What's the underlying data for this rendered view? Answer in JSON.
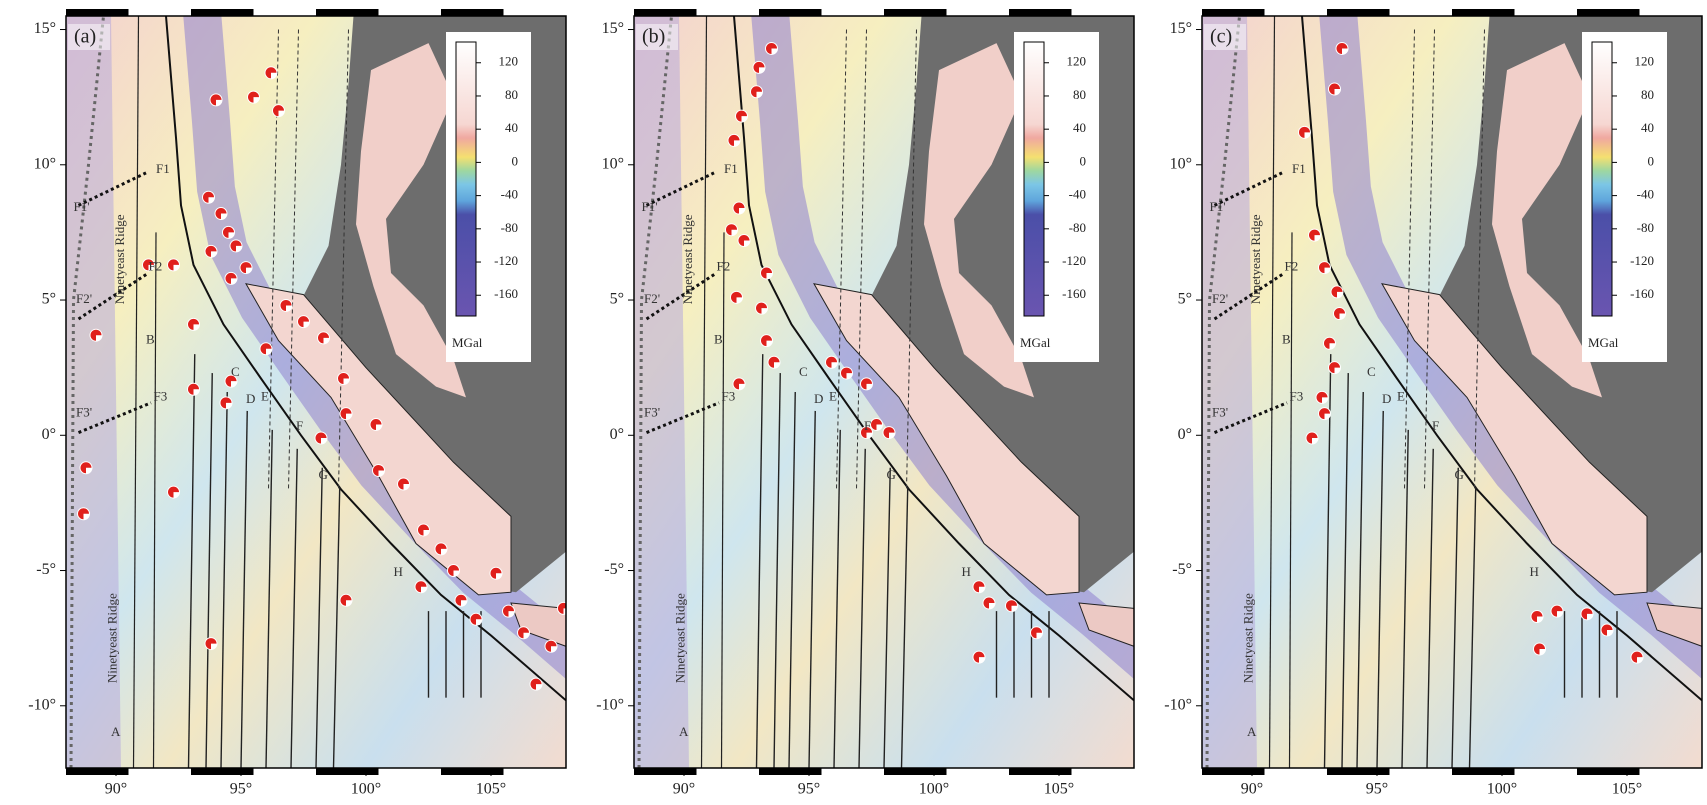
{
  "panels": [
    {
      "label": "(a)",
      "lat_ticks": [
        {
          "value": 15,
          "label": "15°"
        },
        {
          "value": 10,
          "label": "10°"
        },
        {
          "value": 5,
          "label": "5°"
        },
        {
          "value": 0,
          "label": "0°"
        },
        {
          "value": -5,
          "label": "-5°"
        },
        {
          "value": -10,
          "label": "-10°"
        }
      ],
      "lon_ticks": [
        {
          "value": 90,
          "label": "90°"
        },
        {
          "value": 95,
          "label": "95°"
        },
        {
          "value": 100,
          "label": "100°"
        },
        {
          "value": 105,
          "label": "105°"
        }
      ],
      "colorbar": {
        "clim": [
          -185,
          145
        ],
        "ticks": [
          120,
          80,
          40,
          0,
          -40,
          -80,
          -120,
          -160
        ],
        "unit": "MGal"
      },
      "features": [
        "A",
        "B",
        "C",
        "D",
        "E",
        "F",
        "G",
        "H",
        "F1",
        "F1'",
        "F2",
        "F2'",
        "F3",
        "F3'",
        "Ninetyeast Ridge",
        "Ninetyeast Ridge"
      ]
    },
    {
      "label": "(b)",
      "lat_ticks": [
        {
          "value": 15,
          "label": "15°"
        },
        {
          "value": 10,
          "label": "10°"
        },
        {
          "value": 5,
          "label": "5°"
        },
        {
          "value": 0,
          "label": "0°"
        },
        {
          "value": -5,
          "label": "-5°"
        },
        {
          "value": -10,
          "label": "-10°"
        }
      ],
      "lon_ticks": [
        {
          "value": 90,
          "label": "90°"
        },
        {
          "value": 95,
          "label": "95°"
        },
        {
          "value": 100,
          "label": "100°"
        },
        {
          "value": 105,
          "label": "105°"
        }
      ],
      "colorbar": {
        "clim": [
          -185,
          145
        ],
        "ticks": [
          120,
          80,
          40,
          0,
          -40,
          -80,
          -120,
          -160
        ],
        "unit": "MGal"
      },
      "features": [
        "A",
        "B",
        "C",
        "D",
        "E",
        "F",
        "G",
        "H",
        "F1",
        "F1'",
        "F2",
        "F2'",
        "F3",
        "F3'",
        "Ninetyeast Ridge",
        "Ninetyeast Ridge"
      ]
    },
    {
      "label": "(c)",
      "lat_ticks": [
        {
          "value": 15,
          "label": "15°"
        },
        {
          "value": 10,
          "label": "10°"
        },
        {
          "value": 5,
          "label": "5°"
        },
        {
          "value": 0,
          "label": "0°"
        },
        {
          "value": -5,
          "label": "-5°"
        },
        {
          "value": -10,
          "label": "-10°"
        }
      ],
      "lon_ticks": [
        {
          "value": 90,
          "label": "90°"
        },
        {
          "value": 95,
          "label": "95°"
        },
        {
          "value": 100,
          "label": "100°"
        },
        {
          "value": 105,
          "label": "105°"
        }
      ],
      "colorbar": {
        "clim": [
          -185,
          145
        ],
        "ticks": [
          120,
          80,
          40,
          0,
          -40,
          -80,
          -120,
          -160
        ],
        "unit": "MGal"
      },
      "features": [
        "A",
        "B",
        "C",
        "D",
        "E",
        "F",
        "G",
        "H",
        "F1",
        "F1'",
        "F2",
        "F2'",
        "F3",
        "F3'",
        "Ninetyeast Ridge",
        "Ninetyeast Ridge"
      ]
    }
  ]
}
